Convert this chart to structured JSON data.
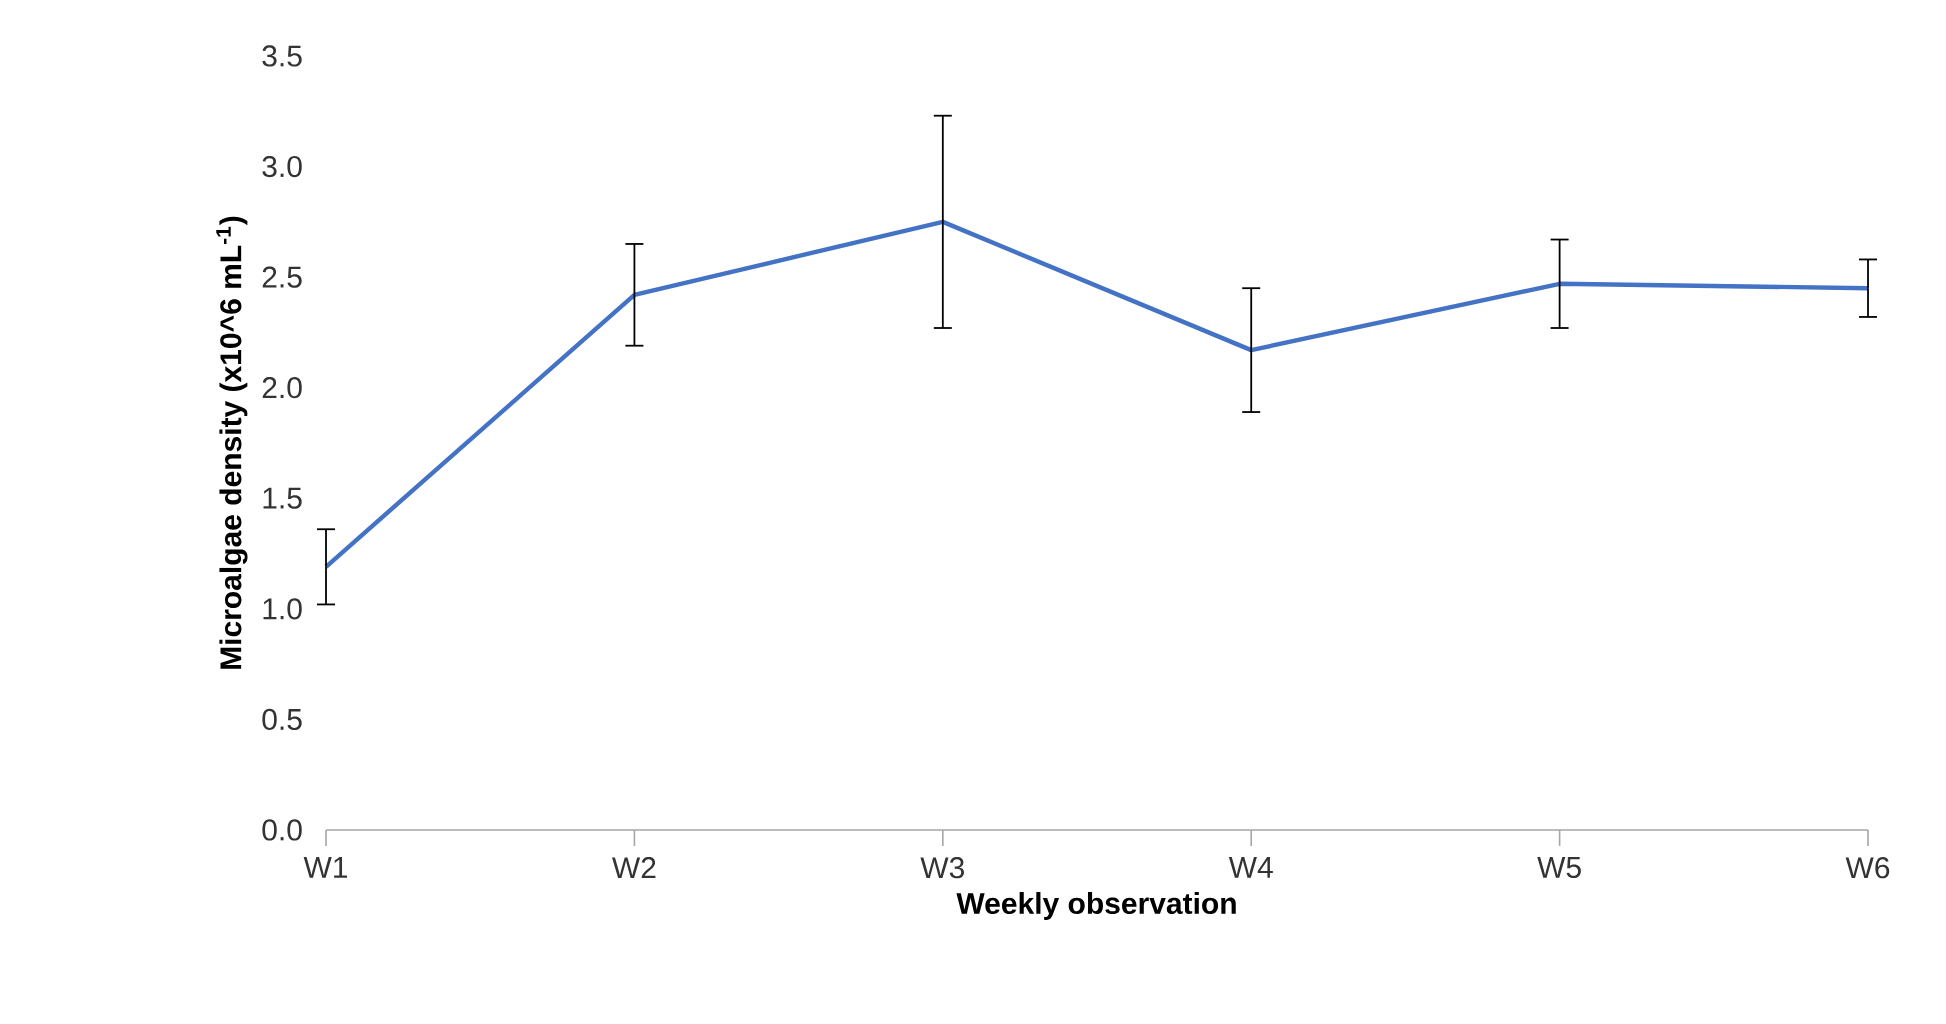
{
  "chart_data": {
    "type": "line",
    "xlabel": "Weekly observation",
    "ylabel": "Microalgae density (x10^6 mL$^{-1}$)",
    "categories": [
      "W1",
      "W2",
      "W3",
      "W4",
      "W5",
      "W6"
    ],
    "series": [
      {
        "color": "#4472c4",
        "values": [
          1.19,
          2.42,
          2.75,
          2.17,
          2.47,
          2.45
        ],
        "errors": [
          0.17,
          0.23,
          0.48,
          0.28,
          0.2,
          0.13
        ]
      }
    ],
    "ylim": [
      0,
      3.5
    ],
    "yticks": [
      {
        "value": 0,
        "label": "0.0"
      },
      0.5,
      {
        "value": 1,
        "label": "1.0"
      },
      1.5,
      {
        "value": 2,
        "label": "2.0"
      },
      2.5,
      {
        "value": 3,
        "label": "3.0"
      },
      3.5
    ],
    "grid": false,
    "legend": false,
    "marker": "none",
    "line_style": "solid"
  }
}
